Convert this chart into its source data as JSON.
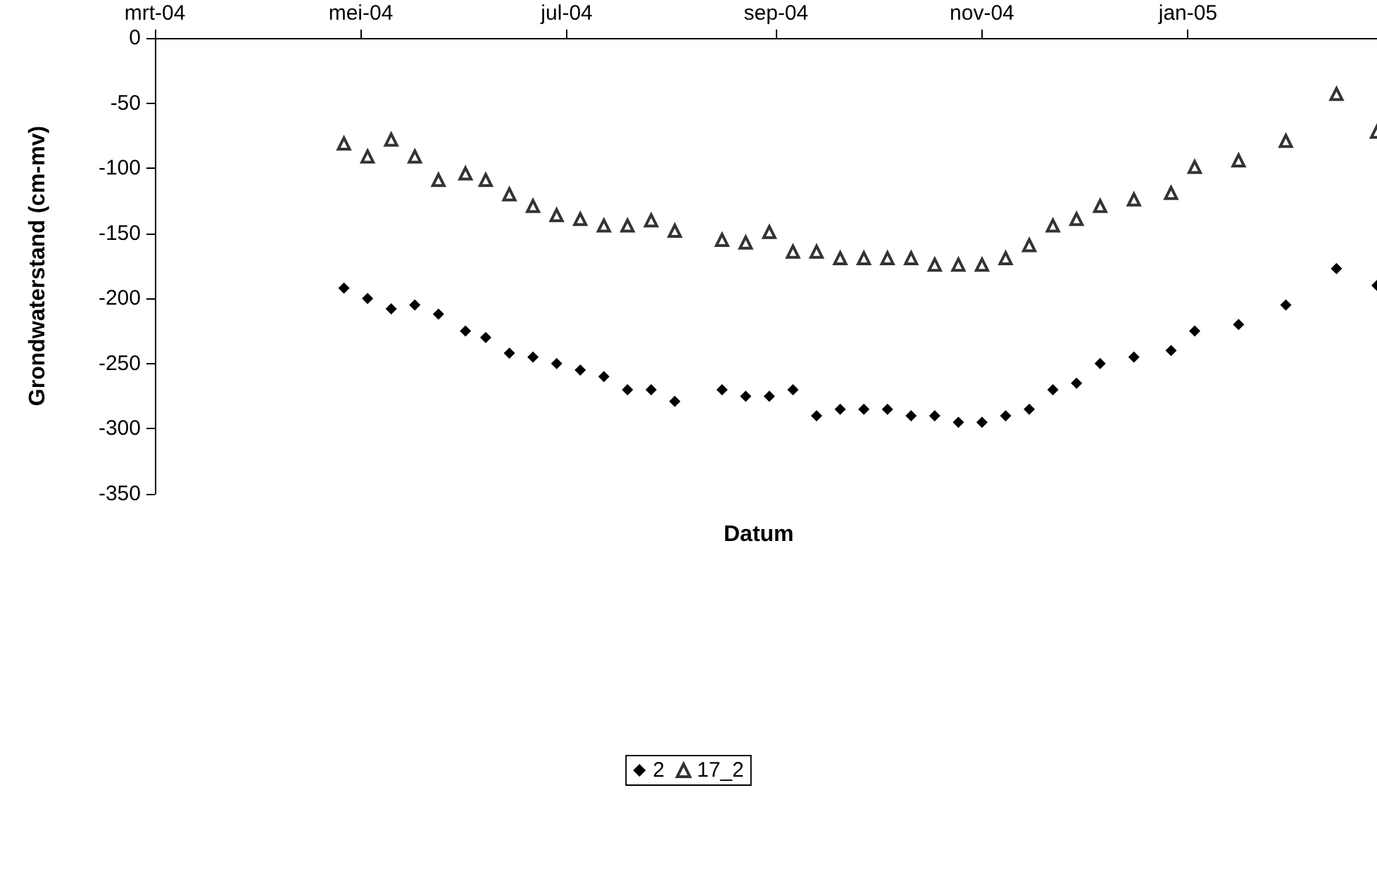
{
  "chart_data": {
    "type": "scatter",
    "xlabel": "Datum",
    "ylabel": "Grondwaterstand (cm-mv)",
    "xlim": [
      "2004-03-01",
      "2005-02-26"
    ],
    "xticks": [
      {
        "value": "2004-03-01",
        "label": "mrt-04"
      },
      {
        "value": "2004-05-01",
        "label": "mei-04"
      },
      {
        "value": "2004-07-01",
        "label": "jul-04"
      },
      {
        "value": "2004-09-01",
        "label": "sep-04"
      },
      {
        "value": "2004-11-01",
        "label": "nov-04"
      },
      {
        "value": "2005-01-01",
        "label": "jan-05"
      }
    ],
    "ylim": [
      -350,
      0
    ],
    "yticks": [
      0,
      -50,
      -100,
      -150,
      -200,
      -250,
      -300,
      -350
    ],
    "x": [
      "2004-04-26",
      "2004-05-03",
      "2004-05-10",
      "2004-05-17",
      "2004-05-24",
      "2004-06-01",
      "2004-06-07",
      "2004-06-14",
      "2004-06-21",
      "2004-06-28",
      "2004-07-05",
      "2004-07-12",
      "2004-07-19",
      "2004-07-26",
      "2004-08-02",
      "2004-08-16",
      "2004-08-23",
      "2004-08-30",
      "2004-09-06",
      "2004-09-13",
      "2004-09-20",
      "2004-09-27",
      "2004-10-04",
      "2004-10-11",
      "2004-10-18",
      "2004-10-25",
      "2004-11-01",
      "2004-11-08",
      "2004-11-15",
      "2004-11-22",
      "2004-11-29",
      "2004-12-06",
      "2004-12-16",
      "2004-12-27",
      "2005-01-03",
      "2005-01-16",
      "2005-01-30",
      "2005-02-14",
      "2005-02-26"
    ],
    "series": [
      {
        "name": "2",
        "color": "#000000",
        "marker": "diamond",
        "values": [
          -192,
          -200,
          -208,
          -205,
          -212,
          -225,
          -230,
          -242,
          -245,
          -250,
          -255,
          -260,
          -270,
          -270,
          -279,
          -270,
          -275,
          -275,
          -270,
          -290,
          -285,
          -285,
          -285,
          -290,
          -290,
          -295,
          -295,
          -290,
          -285,
          -270,
          -265,
          -250,
          -245,
          -240,
          -225,
          -220,
          -205,
          -177,
          -190
        ]
      },
      {
        "name": "17_2",
        "color": "#000000",
        "marker": "triangle",
        "values": [
          -81,
          -91,
          -78,
          -91,
          -109,
          -104,
          -109,
          -120,
          -129,
          -136,
          -139,
          -144,
          -144,
          -140,
          -148,
          -155,
          -157,
          -149,
          -164,
          -164,
          -169,
          -169,
          -169,
          -169,
          -174,
          -174,
          -174,
          -169,
          -159,
          -144,
          -139,
          -129,
          -124,
          -119,
          -99,
          -94,
          -79,
          -43,
          -72
        ]
      }
    ],
    "legend": "bottom",
    "grid": false
  }
}
